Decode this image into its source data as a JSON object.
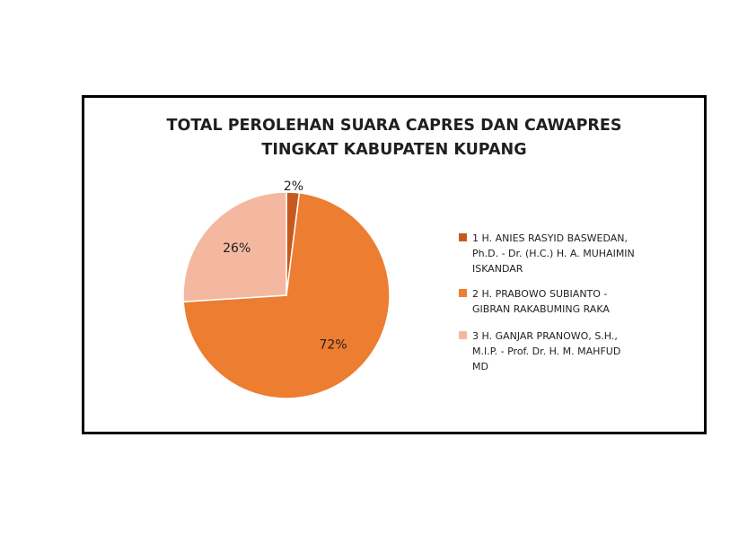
{
  "chart_data": {
    "type": "pie",
    "title": [
      "TOTAL PEROLEHAN SUARA CAPRES DAN CAWAPRES",
      "TINGKAT KABUPATEN KUPANG"
    ],
    "legend_position": "right",
    "slices": [
      {
        "label": "1 H. ANIES RASYID BASWEDAN,\nPh.D. - Dr. (H.C.) H. A. MUHAIMIN\nISKANDAR",
        "value": 2,
        "data_label": "2%",
        "color": "#c65a1e"
      },
      {
        "label": "2 H. PRABOWO SUBIANTO -\nGIBRAN RAKABUMING RAKA",
        "value": 72,
        "data_label": "72%",
        "color": "#ed7d31"
      },
      {
        "label": "3 H. GANJAR PRANOWO, S.H.,\nM.I.P. - Prof. Dr. H. M. MAHFUD\nMD",
        "value": 26,
        "data_label": "26%",
        "color": "#f4b8a0"
      }
    ]
  }
}
